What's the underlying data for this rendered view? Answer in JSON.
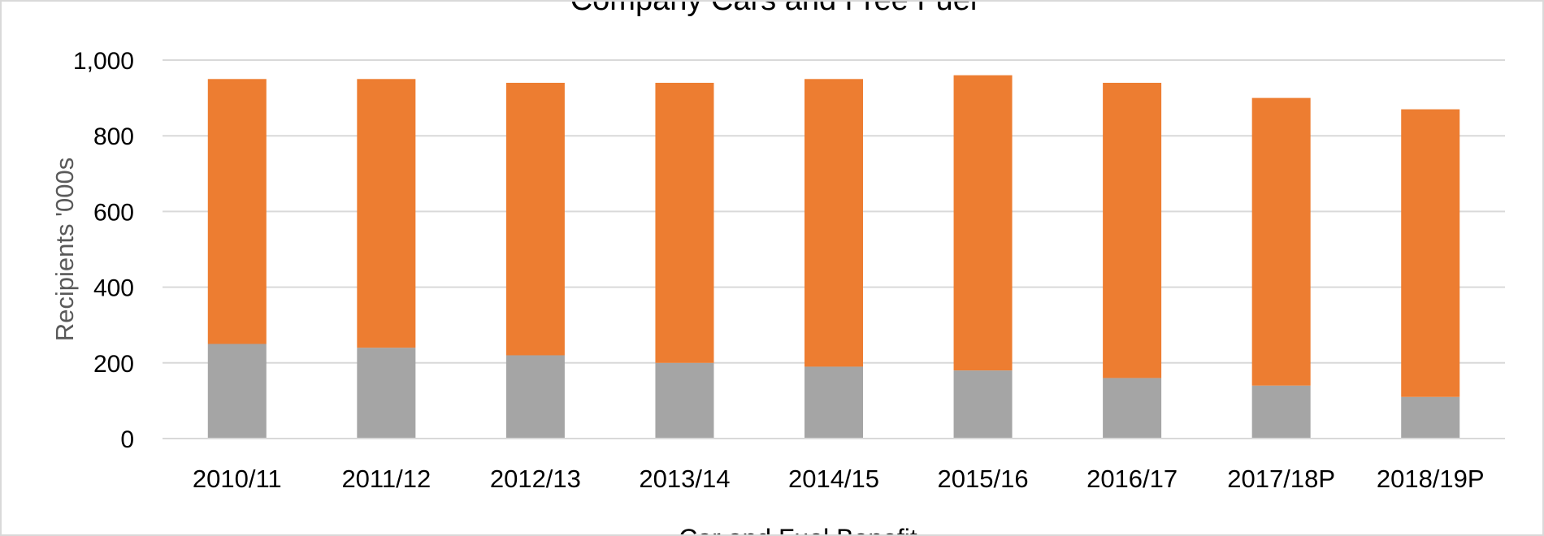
{
  "chart_data": {
    "type": "bar",
    "stacked": true,
    "title": "Company Cars and Free Fuel",
    "xlabel": "Car and Fuel Benefit",
    "ylabel": "Recipients '000s",
    "categories": [
      "2010/11",
      "2011/12",
      "2012/13",
      "2013/14",
      "2014/15",
      "2015/16",
      "2016/17",
      "2017/18P",
      "2018/19P"
    ],
    "series": [
      {
        "values": [
          250,
          240,
          220,
          200,
          190,
          180,
          160,
          140,
          110
        ],
        "color": "#a5a5a5"
      },
      {
        "values": [
          700,
          710,
          720,
          740,
          760,
          780,
          780,
          760,
          760
        ],
        "color": "#ed7d31"
      }
    ],
    "ylim": [
      0,
      1000
    ],
    "yticks": [
      0,
      200,
      400,
      600,
      800,
      1000
    ],
    "ytick_labels": [
      "0",
      "200",
      "400",
      "600",
      "800",
      "1,000"
    ],
    "grid": true,
    "gridline_color": "#d9d9d9"
  }
}
